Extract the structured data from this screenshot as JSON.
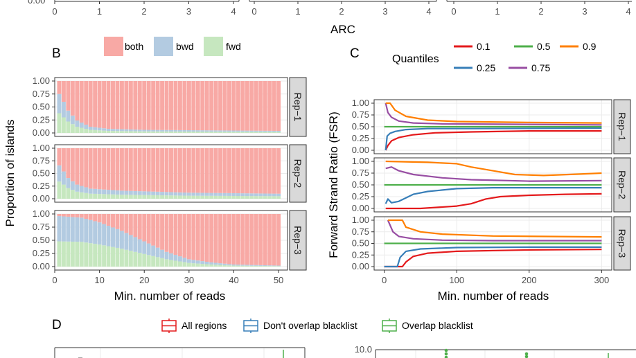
{
  "top_strip": {
    "xlabel": "ARC",
    "ytick_cut": "0.00",
    "xticks": [
      0,
      1,
      2,
      3,
      4
    ]
  },
  "panel_b": {
    "label": "B",
    "xlabel": "Min. number of reads",
    "ylabel": "Proportion of islands",
    "colors": {
      "both": "#F8A9A5",
      "bwd": "#B3CBE1",
      "fwd": "#C6E7BF"
    },
    "legend": [
      "both",
      "bwd",
      "fwd"
    ]
  },
  "panel_c": {
    "label": "C",
    "xlabel": "Min. number of reads",
    "ylabel": "Forward Strand Ratio (FSR)",
    "legend_title": "Quantiles",
    "legend": [
      {
        "name": "0.1",
        "color": "#E41A1C"
      },
      {
        "name": "0.5",
        "color": "#4DAF4A"
      },
      {
        "name": "0.9",
        "color": "#FF7F00"
      },
      {
        "name": "0.25",
        "color": "#377EB8"
      },
      {
        "name": "0.75",
        "color": "#984EA3"
      }
    ]
  },
  "panel_d": {
    "label": "D",
    "legend": [
      {
        "name": "All regions",
        "color": "#E41A1C"
      },
      {
        "name": "Don't overlap blacklist",
        "color": "#377EB8"
      },
      {
        "name": "Overlap blacklist",
        "color": "#4DAF4A"
      }
    ],
    "right_ytick_top": "10.0"
  },
  "chart_data": [
    {
      "type": "bar",
      "stacked": true,
      "panel": "B",
      "xlabel": "Min. number of reads",
      "ylabel": "Proportion of islands",
      "xlim": [
        0,
        52
      ],
      "ylim": [
        0,
        1
      ],
      "xticks": [
        0,
        10,
        20,
        30,
        40,
        50
      ],
      "yticks": [
        "0.00",
        "0.25",
        "0.50",
        "0.75",
        "1.00"
      ],
      "facets": [
        "Rep−1",
        "Rep−2",
        "Rep−3"
      ],
      "categories_note": "x = 1..50",
      "series": [
        {
          "name": "fwd",
          "facet": "Rep−1",
          "anchors": [
            [
              1,
              0.38
            ],
            [
              2,
              0.3
            ],
            [
              3,
              0.22
            ],
            [
              5,
              0.12
            ],
            [
              8,
              0.06
            ],
            [
              12,
              0.04
            ],
            [
              20,
              0.03
            ],
            [
              50,
              0.02
            ]
          ]
        },
        {
          "name": "bwd",
          "facet": "Rep−1",
          "anchors": [
            [
              1,
              0.37
            ],
            [
              2,
              0.3
            ],
            [
              3,
              0.21
            ],
            [
              5,
              0.12
            ],
            [
              8,
              0.06
            ],
            [
              12,
              0.04
            ],
            [
              20,
              0.03
            ],
            [
              50,
              0.02
            ]
          ]
        },
        {
          "name": "fwd",
          "facet": "Rep−2",
          "anchors": [
            [
              1,
              0.34
            ],
            [
              2,
              0.28
            ],
            [
              3,
              0.21
            ],
            [
              5,
              0.14
            ],
            [
              8,
              0.1
            ],
            [
              15,
              0.08
            ],
            [
              30,
              0.06
            ],
            [
              50,
              0.05
            ]
          ]
        },
        {
          "name": "bwd",
          "facet": "Rep−2",
          "anchors": [
            [
              1,
              0.32
            ],
            [
              2,
              0.26
            ],
            [
              3,
              0.2
            ],
            [
              5,
              0.14
            ],
            [
              8,
              0.1
            ],
            [
              15,
              0.08
            ],
            [
              30,
              0.06
            ],
            [
              50,
              0.05
            ]
          ]
        },
        {
          "name": "fwd",
          "facet": "Rep−3",
          "anchors": [
            [
              1,
              0.48
            ],
            [
              6,
              0.47
            ],
            [
              10,
              0.42
            ],
            [
              15,
              0.34
            ],
            [
              20,
              0.24
            ],
            [
              25,
              0.14
            ],
            [
              30,
              0.07
            ],
            [
              35,
              0.04
            ],
            [
              40,
              0.02
            ],
            [
              50,
              0.01
            ]
          ]
        },
        {
          "name": "bwd",
          "facet": "Rep−3",
          "anchors": [
            [
              1,
              0.48
            ],
            [
              6,
              0.46
            ],
            [
              10,
              0.42
            ],
            [
              15,
              0.34
            ],
            [
              20,
              0.24
            ],
            [
              25,
              0.14
            ],
            [
              30,
              0.07
            ],
            [
              35,
              0.04
            ],
            [
              40,
              0.02
            ],
            [
              50,
              0.01
            ]
          ]
        }
      ]
    },
    {
      "type": "line",
      "panel": "C",
      "xlabel": "Min. number of reads",
      "ylabel": "Forward Strand Ratio (FSR)",
      "xlim": [
        0,
        300
      ],
      "ylim": [
        0,
        1
      ],
      "xticks": [
        0,
        100,
        200,
        300
      ],
      "yticks": [
        "0.00",
        "0.25",
        "0.50",
        "0.75",
        "1.00"
      ],
      "facets": [
        "Rep−1",
        "Rep−2",
        "Rep−3"
      ],
      "series": [
        {
          "name": "0.1",
          "facet": "Rep−1",
          "points": [
            [
              2,
              0
            ],
            [
              5,
              0.1
            ],
            [
              10,
              0.2
            ],
            [
              20,
              0.27
            ],
            [
              40,
              0.33
            ],
            [
              70,
              0.37
            ],
            [
              120,
              0.39
            ],
            [
              200,
              0.41
            ],
            [
              300,
              0.41
            ]
          ]
        },
        {
          "name": "0.25",
          "facet": "Rep−1",
          "points": [
            [
              2,
              0
            ],
            [
              4,
              0.3
            ],
            [
              8,
              0.36
            ],
            [
              15,
              0.4
            ],
            [
              30,
              0.44
            ],
            [
              60,
              0.46
            ],
            [
              120,
              0.46
            ],
            [
              300,
              0.47
            ]
          ]
        },
        {
          "name": "0.5",
          "facet": "Rep−1",
          "points": [
            [
              0,
              0.5
            ],
            [
              300,
              0.5
            ]
          ]
        },
        {
          "name": "0.75",
          "facet": "Rep−1",
          "points": [
            [
              2,
              1
            ],
            [
              5,
              0.8
            ],
            [
              10,
              0.7
            ],
            [
              20,
              0.62
            ],
            [
              40,
              0.58
            ],
            [
              80,
              0.56
            ],
            [
              300,
              0.54
            ]
          ]
        },
        {
          "name": "0.9",
          "facet": "Rep−1",
          "points": [
            [
              2,
              1
            ],
            [
              8,
              1
            ],
            [
              15,
              0.85
            ],
            [
              30,
              0.72
            ],
            [
              60,
              0.64
            ],
            [
              100,
              0.61
            ],
            [
              200,
              0.59
            ],
            [
              300,
              0.58
            ]
          ]
        },
        {
          "name": "0.1",
          "facet": "Rep−2",
          "points": [
            [
              2,
              0
            ],
            [
              50,
              0
            ],
            [
              100,
              0.05
            ],
            [
              120,
              0.1
            ],
            [
              140,
              0.2
            ],
            [
              160,
              0.25
            ],
            [
              200,
              0.28
            ],
            [
              250,
              0.3
            ],
            [
              300,
              0.31
            ]
          ]
        },
        {
          "name": "0.25",
          "facet": "Rep−2",
          "points": [
            [
              2,
              0.1
            ],
            [
              5,
              0.2
            ],
            [
              10,
              0.12
            ],
            [
              20,
              0.15
            ],
            [
              40,
              0.3
            ],
            [
              60,
              0.36
            ],
            [
              100,
              0.42
            ],
            [
              150,
              0.44
            ],
            [
              300,
              0.44
            ]
          ]
        },
        {
          "name": "0.5",
          "facet": "Rep−2",
          "points": [
            [
              0,
              0.5
            ],
            [
              300,
              0.5
            ]
          ]
        },
        {
          "name": "0.75",
          "facet": "Rep−2",
          "points": [
            [
              2,
              0.85
            ],
            [
              10,
              0.88
            ],
            [
              20,
              0.8
            ],
            [
              40,
              0.72
            ],
            [
              80,
              0.65
            ],
            [
              120,
              0.61
            ],
            [
              200,
              0.58
            ],
            [
              300,
              0.59
            ]
          ]
        },
        {
          "name": "0.9",
          "facet": "Rep−2",
          "points": [
            [
              2,
              1
            ],
            [
              60,
              0.98
            ],
            [
              100,
              0.95
            ],
            [
              120,
              0.88
            ],
            [
              150,
              0.8
            ],
            [
              180,
              0.72
            ],
            [
              220,
              0.7
            ],
            [
              270,
              0.73
            ],
            [
              300,
              0.75
            ]
          ]
        },
        {
          "name": "0.1",
          "facet": "Rep−3",
          "points": [
            [
              0,
              0
            ],
            [
              25,
              0
            ],
            [
              30,
              0.1
            ],
            [
              40,
              0.22
            ],
            [
              60,
              0.29
            ],
            [
              100,
              0.33
            ],
            [
              200,
              0.36
            ],
            [
              300,
              0.37
            ]
          ]
        },
        {
          "name": "0.25",
          "facet": "Rep−3",
          "points": [
            [
              0,
              0
            ],
            [
              18,
              0
            ],
            [
              22,
              0.2
            ],
            [
              30,
              0.33
            ],
            [
              50,
              0.38
            ],
            [
              100,
              0.41
            ],
            [
              200,
              0.42
            ],
            [
              300,
              0.42
            ]
          ]
        },
        {
          "name": "0.5",
          "facet": "Rep−3",
          "points": [
            [
              0,
              0.5
            ],
            [
              300,
              0.5
            ]
          ]
        },
        {
          "name": "0.75",
          "facet": "Rep−3",
          "points": [
            [
              5,
              1
            ],
            [
              12,
              0.75
            ],
            [
              20,
              0.65
            ],
            [
              40,
              0.6
            ],
            [
              80,
              0.57
            ],
            [
              150,
              0.56
            ],
            [
              300,
              0.56
            ]
          ]
        },
        {
          "name": "0.9",
          "facet": "Rep−3",
          "points": [
            [
              5,
              1
            ],
            [
              25,
              1
            ],
            [
              30,
              0.85
            ],
            [
              50,
              0.75
            ],
            [
              80,
              0.7
            ],
            [
              150,
              0.66
            ],
            [
              300,
              0.64
            ]
          ]
        }
      ]
    }
  ]
}
